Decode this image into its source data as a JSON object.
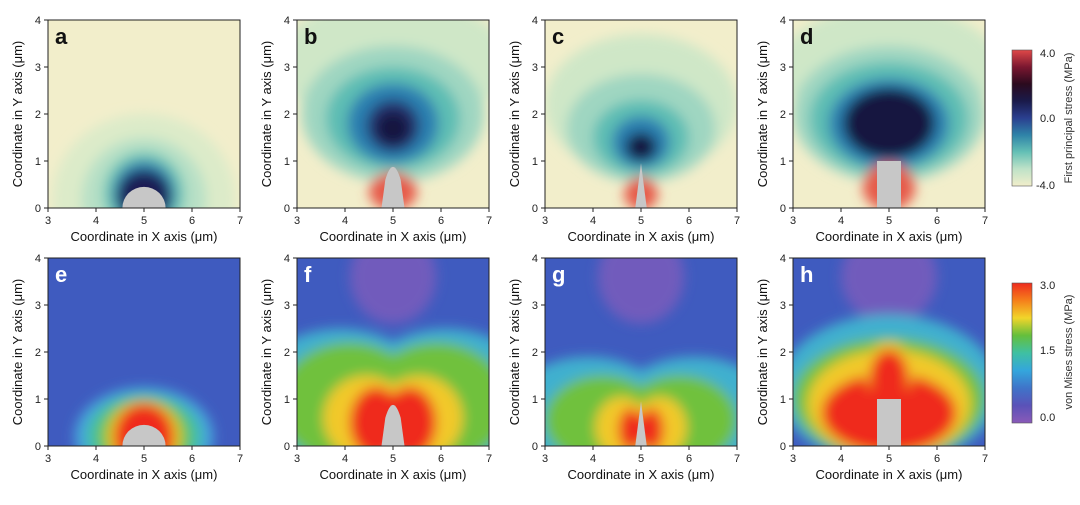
{
  "chart_data": [
    {
      "type": "heatmap",
      "panel": "a",
      "row": "first",
      "shape": "circle",
      "xlabel": "Coordinate in X axis (μm)",
      "ylabel": "Coordinate in Y axis (μm)",
      "xlim": [
        3,
        7
      ],
      "ylim": [
        0,
        4
      ],
      "xticks": [
        "3",
        "4",
        "5",
        "6",
        "7"
      ],
      "yticks": [
        "0",
        "1",
        "2",
        "3",
        "4"
      ]
    },
    {
      "type": "heatmap",
      "panel": "b",
      "row": "first",
      "shape": "cone",
      "xlabel": "Coordinate in X axis (μm)",
      "ylabel": "Coordinate in Y axis (μm)",
      "xlim": [
        3,
        7
      ],
      "ylim": [
        0,
        4
      ],
      "xticks": [
        "3",
        "4",
        "5",
        "6",
        "7"
      ],
      "yticks": [
        "0",
        "1",
        "2",
        "3",
        "4"
      ]
    },
    {
      "type": "heatmap",
      "panel": "c",
      "row": "first",
      "shape": "needle",
      "xlabel": "Coordinate in X axis (μm)",
      "ylabel": "Coordinate in Y axis (μm)",
      "xlim": [
        3,
        7
      ],
      "ylim": [
        0,
        4
      ],
      "xticks": [
        "3",
        "4",
        "5",
        "6",
        "7"
      ],
      "yticks": [
        "0",
        "1",
        "2",
        "3",
        "4"
      ]
    },
    {
      "type": "heatmap",
      "panel": "d",
      "row": "first",
      "shape": "pillar",
      "xlabel": "Coordinate in X axis (μm)",
      "ylabel": "Coordinate in Y axis (μm)",
      "xlim": [
        3,
        7
      ],
      "ylim": [
        0,
        4
      ],
      "xticks": [
        "3",
        "4",
        "5",
        "6",
        "7"
      ],
      "yticks": [
        "0",
        "1",
        "2",
        "3",
        "4"
      ]
    },
    {
      "type": "heatmap",
      "panel": "e",
      "row": "second",
      "shape": "circle",
      "xlabel": "Coordinate in X axis (μm)",
      "ylabel": "Coordinate in Y axis (μm)",
      "xlim": [
        3,
        7
      ],
      "ylim": [
        0,
        4
      ],
      "xticks": [
        "3",
        "4",
        "5",
        "6",
        "7"
      ],
      "yticks": [
        "0",
        "1",
        "2",
        "3",
        "4"
      ]
    },
    {
      "type": "heatmap",
      "panel": "f",
      "row": "second",
      "shape": "cone",
      "xlabel": "Coordinate in X axis (μm)",
      "ylabel": "Coordinate in Y axis (μm)",
      "xlim": [
        3,
        7
      ],
      "ylim": [
        0,
        4
      ],
      "xticks": [
        "3",
        "4",
        "5",
        "6",
        "7"
      ],
      "yticks": [
        "0",
        "1",
        "2",
        "3",
        "4"
      ]
    },
    {
      "type": "heatmap",
      "panel": "g",
      "row": "second",
      "shape": "needle",
      "xlabel": "Coordinate in X axis (μm)",
      "ylabel": "Coordinate in Y axis (μm)",
      "xlim": [
        3,
        7
      ],
      "ylim": [
        0,
        4
      ],
      "xticks": [
        "3",
        "4",
        "5",
        "6",
        "7"
      ],
      "yticks": [
        "0",
        "1",
        "2",
        "3",
        "4"
      ]
    },
    {
      "type": "heatmap",
      "panel": "h",
      "row": "second",
      "shape": "pillar",
      "xlabel": "Coordinate in X axis (μm)",
      "ylabel": "Coordinate in Y axis (μm)",
      "xlim": [
        3,
        7
      ],
      "ylim": [
        0,
        4
      ],
      "xticks": [
        "3",
        "4",
        "5",
        "6",
        "7"
      ],
      "yticks": [
        "0",
        "1",
        "2",
        "3",
        "4"
      ]
    }
  ],
  "colorbars": {
    "first": {
      "label": "First principal stress (MPa)",
      "ticks": [
        "4.0",
        "0.0",
        "-4.0"
      ],
      "range": [
        -4.0,
        4.0
      ],
      "stops": [
        "#f2eecb",
        "#bfe2c8",
        "#64c0b5",
        "#2f83a8",
        "#2a3f8f",
        "#1a1a4a",
        "#2b0a1e",
        "#7a1730",
        "#e04848"
      ]
    },
    "second": {
      "label": "von Mises stress (MPa)",
      "ticks": [
        "3.0",
        "1.5",
        "0.0"
      ],
      "range": [
        0.0,
        3.0
      ],
      "stops": [
        "#ee2b1f",
        "#f57f1b",
        "#f1d52a",
        "#64bf3c",
        "#3fc0a2",
        "#34a6dc",
        "#3f74c9",
        "#5a52b8",
        "#8a5ab8"
      ]
    }
  },
  "colors": {
    "first_background": "#f2eecb",
    "second_background": "#3f5bbf",
    "inclusion": "#c7c7c7",
    "letter_dark": "#111111",
    "letter_light": "#ffffff"
  }
}
